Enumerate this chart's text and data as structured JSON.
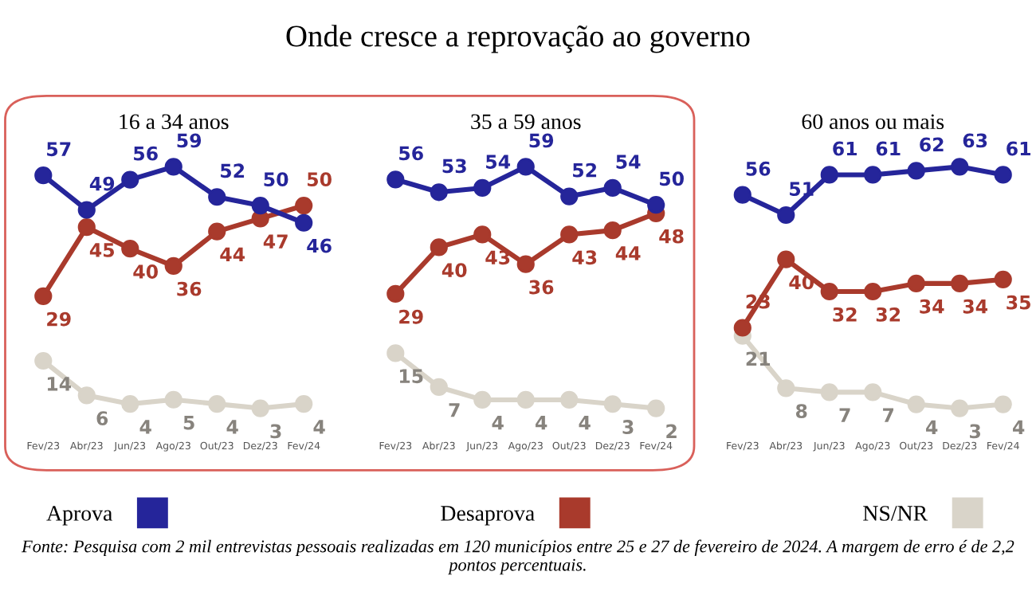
{
  "chart_data": [
    {
      "type": "line",
      "title": "16 a 34 anos",
      "categories": [
        "Fev/23",
        "Abr/23",
        "Jun/23",
        "Ago/23",
        "Out/23",
        "Dez/23",
        "Fev/24"
      ],
      "tick_labels": "x",
      "marker": "circle",
      "line_style": "solid",
      "data_labels": true,
      "legend": "bottom",
      "grid": false,
      "annotations": [
        "Onde cresce a reprovação ao governo",
        "Fonte: Pesquisa com 2 mil entrevistas pessoais realizadas em 120 municípios entre 25 e 27 de fevereiro de 2024. A margem de erro é de 2,2 pontos percentuais."
      ],
      "series": [
        {
          "name": "Aprova",
          "color": "#25259a",
          "values": [
            57,
            49,
            56,
            59,
            52,
            50,
            46
          ]
        },
        {
          "name": "Desaprova",
          "color": "#a93a2c",
          "values": [
            29,
            45,
            40,
            36,
            44,
            47,
            50
          ]
        },
        {
          "name": "NS/NR",
          "color": "#d9d4c9",
          "values": [
            14,
            6,
            4,
            5,
            4,
            3,
            4
          ]
        }
      ]
    },
    {
      "type": "line",
      "title": "35 a 59 anos",
      "categories": [
        "Fev/23",
        "Abr/23",
        "Jun/23",
        "Ago/23",
        "Out/23",
        "Dez/23",
        "Fev/24"
      ],
      "tick_labels": "x",
      "marker": "circle",
      "line_style": "solid",
      "data_labels": true,
      "grid": false,
      "series": [
        {
          "color": "#25259a",
          "values": [
            56,
            53,
            54,
            59,
            52,
            54,
            50
          ]
        },
        {
          "color": "#a93a2c",
          "values": [
            29,
            40,
            43,
            36,
            43,
            44,
            48
          ]
        },
        {
          "color": "#d9d4c9",
          "values": [
            15,
            7,
            4,
            4,
            4,
            3,
            2
          ]
        }
      ]
    },
    {
      "type": "line",
      "title": "60 anos ou mais",
      "categories": [
        "Fev/23",
        "Abr/23",
        "Jun/23",
        "Ago/23",
        "Out/23",
        "Dez/23",
        "Fev/24"
      ],
      "tick_labels": "x",
      "marker": "circle",
      "line_style": "solid",
      "data_labels": true,
      "grid": false,
      "series": [
        {
          "color": "#25259a",
          "values": [
            56,
            51,
            61,
            61,
            62,
            63,
            61
          ]
        },
        {
          "color": "#a93a2c",
          "values": [
            23,
            40,
            32,
            32,
            34,
            34,
            35
          ]
        },
        {
          "color": "#d9d4c9",
          "values": [
            21,
            8,
            7,
            7,
            4,
            3,
            4
          ]
        }
      ]
    }
  ]
}
